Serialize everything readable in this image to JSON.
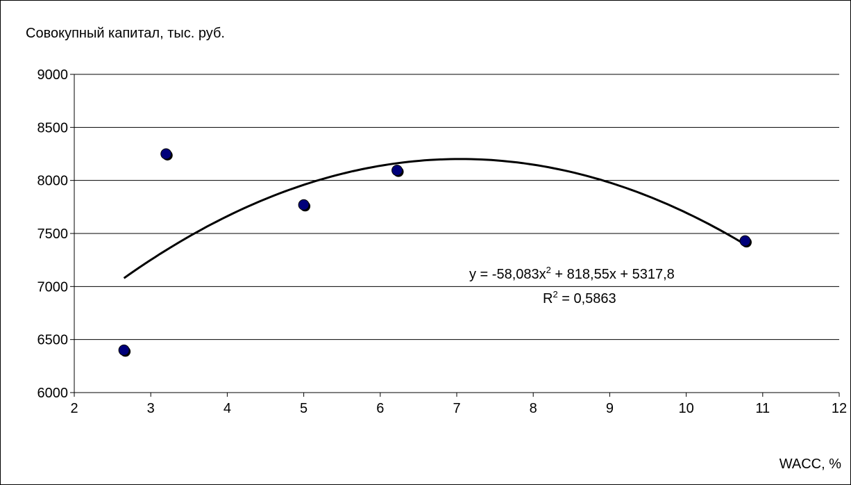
{
  "chart_data": {
    "type": "scatter",
    "ylabel": "Совокупный капитал, тыс. руб.",
    "xlabel": "WACC, %",
    "xlim": [
      2,
      12
    ],
    "ylim": [
      6000,
      9000
    ],
    "xticks": [
      "2",
      "3",
      "4",
      "5",
      "6",
      "7",
      "8",
      "9",
      "10",
      "11",
      "12"
    ],
    "yticks": [
      "6000",
      "6500",
      "7000",
      "7500",
      "8000",
      "8500",
      "9000"
    ],
    "grid": "horizontal",
    "legend": "none",
    "marker_color": "#00007a",
    "points": [
      {
        "x": 2.65,
        "y": 6400
      },
      {
        "x": 3.2,
        "y": 8250
      },
      {
        "x": 5.0,
        "y": 7770
      },
      {
        "x": 6.22,
        "y": 8095
      },
      {
        "x": 10.77,
        "y": 7430
      }
    ],
    "trendline": {
      "type": "polynomial",
      "coefficients": [
        -58.083,
        818.55,
        5317.8
      ],
      "x_range": [
        2.65,
        10.77
      ],
      "equation_prefix": "y = -58,083x",
      "equation_exponent": "2",
      "equation_suffix": " + 818,55x + 5317,8",
      "r2_prefix": "R",
      "r2_exponent": "2",
      "r2_suffix": " = 0,5863"
    }
  }
}
